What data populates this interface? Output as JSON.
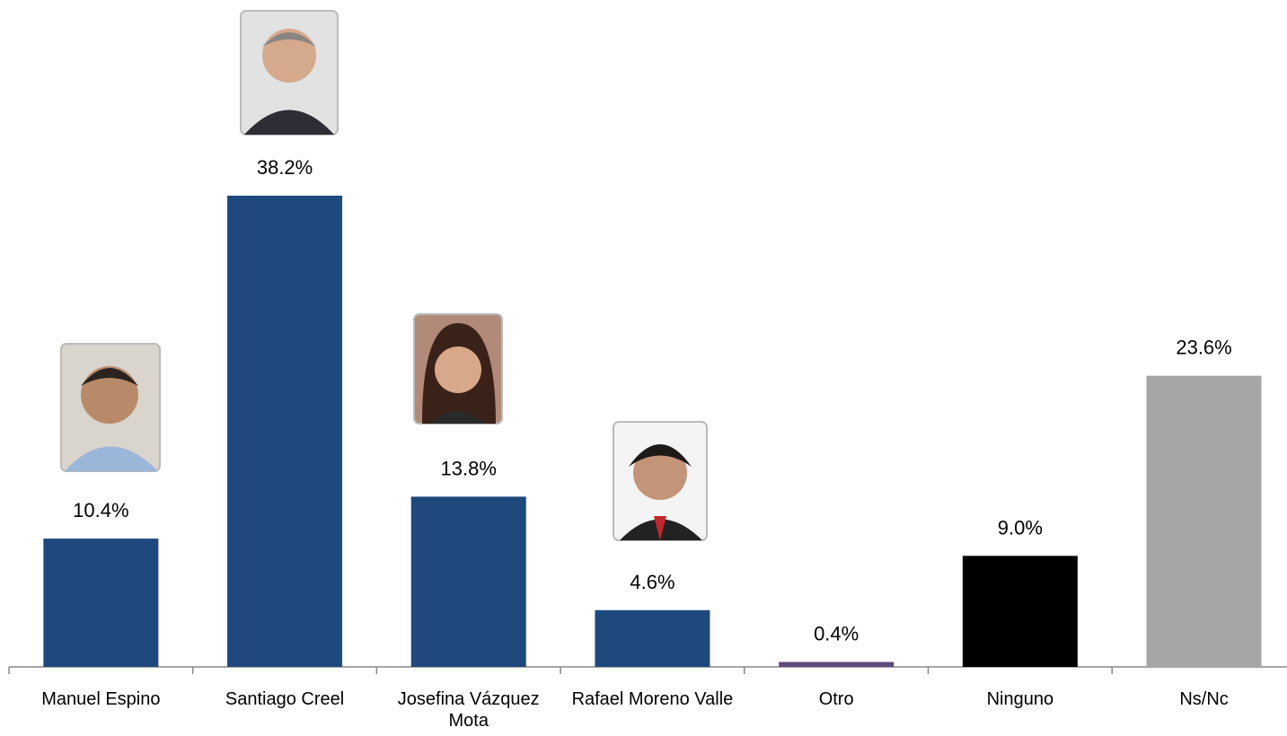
{
  "chart_data": {
    "type": "bar",
    "categories": [
      "Manuel Espino",
      "Santiago Creel",
      "Josefina Vázquez Mota",
      "Rafael Moreno Valle",
      "Otro",
      "Ninguno",
      "Ns/Nc"
    ],
    "values": [
      10.4,
      38.2,
      13.8,
      4.6,
      0.4,
      9.0,
      23.6
    ],
    "value_labels": [
      "10.4%",
      "38.2%",
      "13.8%",
      "4.6%",
      "0.4%",
      "9.0%",
      "23.6%"
    ],
    "colors": [
      "#1f497d",
      "#1f497d",
      "#1f497d",
      "#1f497d",
      "#604a7b",
      "#000000",
      "#a6a6a6"
    ]
  }
}
